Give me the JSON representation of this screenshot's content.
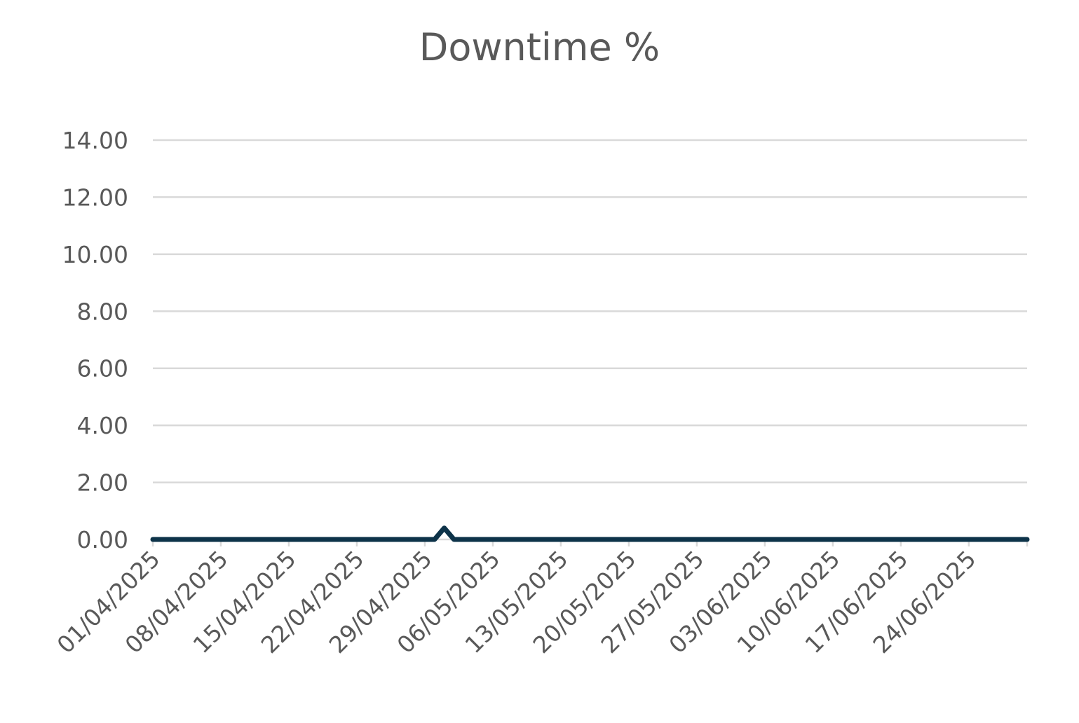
{
  "chart_data": {
    "type": "line",
    "title": "Downtime %",
    "xlabel": "",
    "ylabel": "",
    "ylim": [
      0,
      14
    ],
    "yticks": [
      "0.00",
      "2.00",
      "4.00",
      "6.00",
      "8.00",
      "10.00",
      "12.00",
      "14.00"
    ],
    "xlim": [
      "2025-04-01",
      "2025-06-30"
    ],
    "xticks": [
      {
        "date": "2025-04-01",
        "label": "01/04/2025"
      },
      {
        "date": "2025-04-08",
        "label": "08/04/2025"
      },
      {
        "date": "2025-04-15",
        "label": "15/04/2025"
      },
      {
        "date": "2025-04-22",
        "label": "22/04/2025"
      },
      {
        "date": "2025-04-29",
        "label": "29/04/2025"
      },
      {
        "date": "2025-05-06",
        "label": "06/05/2025"
      },
      {
        "date": "2025-05-13",
        "label": "13/05/2025"
      },
      {
        "date": "2025-05-20",
        "label": "20/05/2025"
      },
      {
        "date": "2025-05-27",
        "label": "27/05/2025"
      },
      {
        "date": "2025-06-03",
        "label": "03/06/2025"
      },
      {
        "date": "2025-06-10",
        "label": "10/06/2025"
      },
      {
        "date": "2025-06-17",
        "label": "17/06/2025"
      },
      {
        "date": "2025-06-24",
        "label": "24/06/2025"
      }
    ],
    "grid": true,
    "legend": "none",
    "series": [
      {
        "color": "#0d3349",
        "points": [
          {
            "x": "2025-04-01",
            "y": 0
          },
          {
            "x": "2025-04-30",
            "y": 0
          },
          {
            "x": "2025-05-01",
            "y": 0.4
          },
          {
            "x": "2025-05-02",
            "y": 0
          },
          {
            "x": "2025-06-30",
            "y": 0
          }
        ]
      }
    ]
  }
}
